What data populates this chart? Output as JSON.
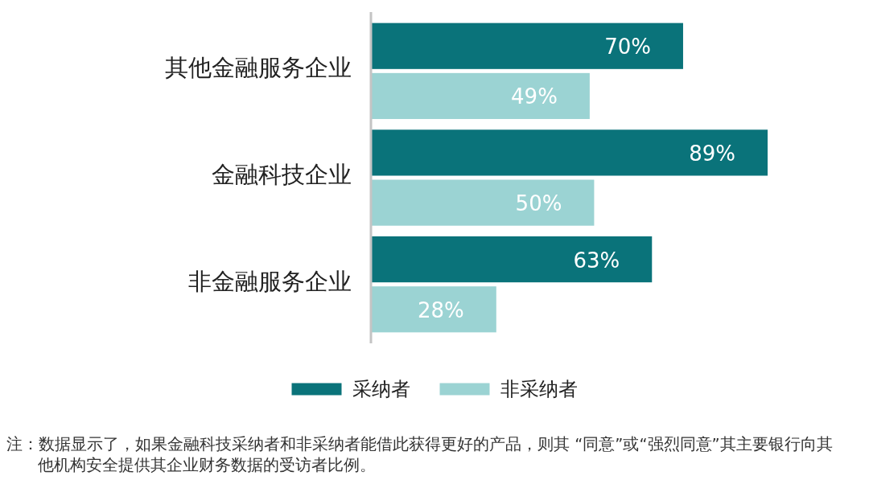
{
  "chart_data": {
    "type": "bar",
    "orientation": "horizontal",
    "categories": [
      "其他金融服务企业",
      "金融科技企业",
      "非金融服务企业"
    ],
    "series": [
      {
        "name": "采纳者",
        "color": "#0a737a",
        "values": [
          70,
          89,
          63
        ],
        "value_labels": [
          "70%",
          "89%",
          "63%"
        ]
      },
      {
        "name": "非采纳者",
        "color": "#9bd3d3",
        "values": [
          49,
          50,
          28
        ],
        "value_labels": [
          "49%",
          "50%",
          "28%"
        ]
      }
    ],
    "tick_labels": "y",
    "legend": "bottom",
    "annotations": [
      "注：数据显示了，如果金融科技采纳者和非采纳者能借此获得更好的产品，则其 “同意”或“强烈同意”其主要银行向其他机构安全提供其企业财务数据的受访者比例。"
    ]
  }
}
